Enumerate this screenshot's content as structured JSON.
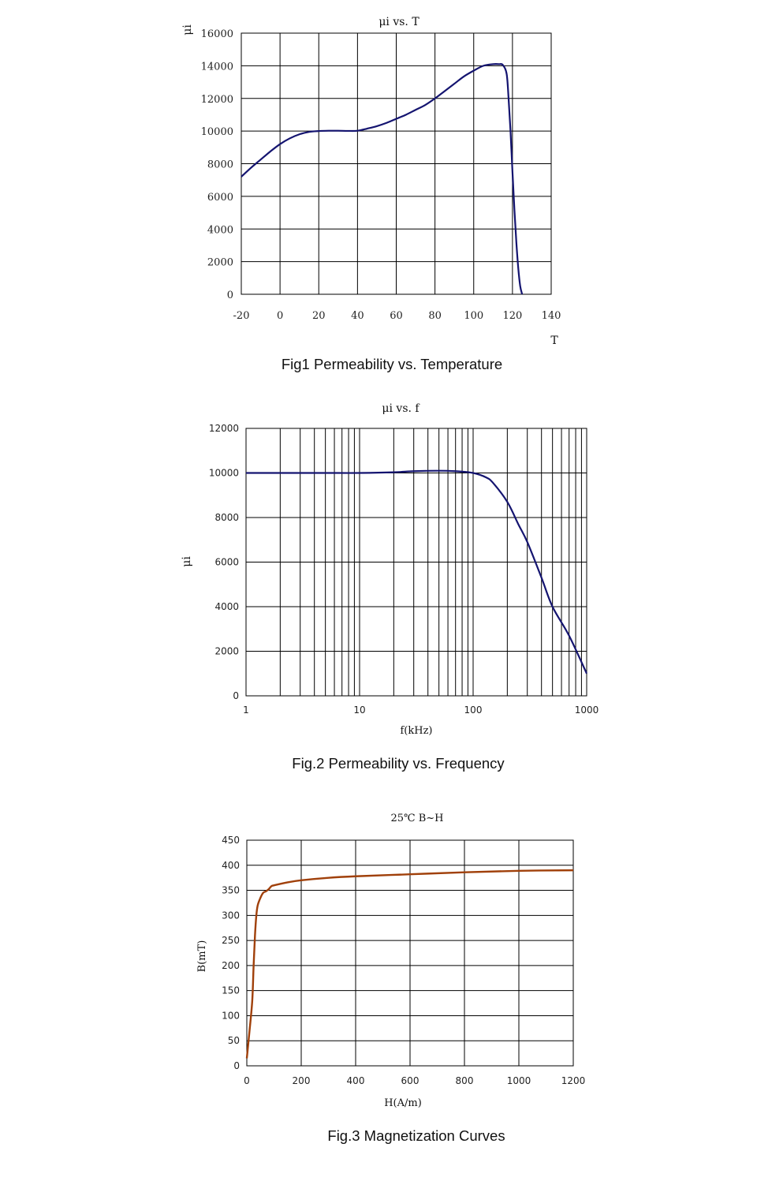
{
  "chart_data": [
    {
      "type": "line",
      "title": "μi vs. T",
      "ylabel": "μi",
      "xlabel": "T",
      "caption": "Fig1 Permeability vs. Temperature",
      "xlim": [
        -20,
        140
      ],
      "ylim": [
        0,
        16000
      ],
      "x_ticks": [
        "-20",
        "0",
        "20",
        "40",
        "60",
        "80",
        "100",
        "120",
        "140"
      ],
      "y_ticks": [
        "0",
        "2000",
        "4000",
        "6000",
        "8000",
        "10000",
        "12000",
        "14000",
        "16000"
      ],
      "grid": true,
      "line_color": "#141470",
      "series": [
        {
          "x": [
            -20,
            -15,
            -10,
            -5,
            0,
            5,
            10,
            15,
            20,
            25,
            30,
            35,
            40,
            45,
            50,
            55,
            60,
            65,
            70,
            75,
            80,
            85,
            90,
            95,
            100,
            105,
            110,
            113,
            115,
            117,
            118,
            119,
            120,
            121,
            122,
            123,
            124,
            125
          ],
          "y": [
            7200,
            7750,
            8250,
            8750,
            9200,
            9550,
            9800,
            9950,
            10000,
            10020,
            10020,
            10010,
            10020,
            10150,
            10300,
            10500,
            10750,
            11000,
            11300,
            11600,
            12000,
            12450,
            12900,
            13350,
            13700,
            14000,
            14100,
            14100,
            14050,
            13500,
            12000,
            10000,
            7500,
            5200,
            3200,
            1600,
            500,
            0
          ]
        }
      ]
    },
    {
      "type": "line",
      "title": "μi vs. f",
      "ylabel": "μi",
      "xlabel": "f(kHz)",
      "caption": "Fig.2 Permeability vs. Frequency",
      "x_scale": "log",
      "xlim": [
        1,
        1000
      ],
      "ylim": [
        0,
        12000
      ],
      "x_ticks": [
        "1",
        "10",
        "100",
        "1000"
      ],
      "y_ticks": [
        "0",
        "2000",
        "4000",
        "6000",
        "8000",
        "10000",
        "12000"
      ],
      "grid": true,
      "line_color": "#141470",
      "series": [
        {
          "x": [
            1,
            2,
            5,
            10,
            20,
            30,
            50,
            70,
            100,
            130,
            150,
            200,
            250,
            300,
            400,
            500,
            700,
            1000
          ],
          "y": [
            10000,
            10000,
            10000,
            10000,
            10030,
            10080,
            10100,
            10080,
            10000,
            9800,
            9550,
            8700,
            7700,
            6900,
            5300,
            4000,
            2700,
            1000
          ]
        }
      ]
    },
    {
      "type": "line",
      "title": "25℃ B~H",
      "ylabel": "B(mT)",
      "xlabel": "H(A/m)",
      "caption": "Fig.3 Magnetization Curves",
      "xlim": [
        0,
        1200
      ],
      "ylim": [
        0,
        450
      ],
      "x_ticks": [
        "0",
        "200",
        "400",
        "600",
        "800",
        "1000",
        "1200"
      ],
      "y_ticks": [
        "0",
        "50",
        "100",
        "150",
        "200",
        "250",
        "300",
        "350",
        "400",
        "450"
      ],
      "grid": true,
      "line_color": "#a0400a",
      "series": [
        {
          "x": [
            0,
            10,
            20,
            25,
            30,
            35,
            40,
            50,
            60,
            70,
            80,
            90,
            100,
            150,
            200,
            300,
            400,
            600,
            800,
            1000,
            1200
          ],
          "y": [
            15,
            70,
            130,
            200,
            260,
            300,
            320,
            335,
            345,
            348,
            352,
            358,
            360,
            366,
            370,
            375,
            378,
            382,
            386,
            389,
            390
          ]
        }
      ]
    }
  ]
}
